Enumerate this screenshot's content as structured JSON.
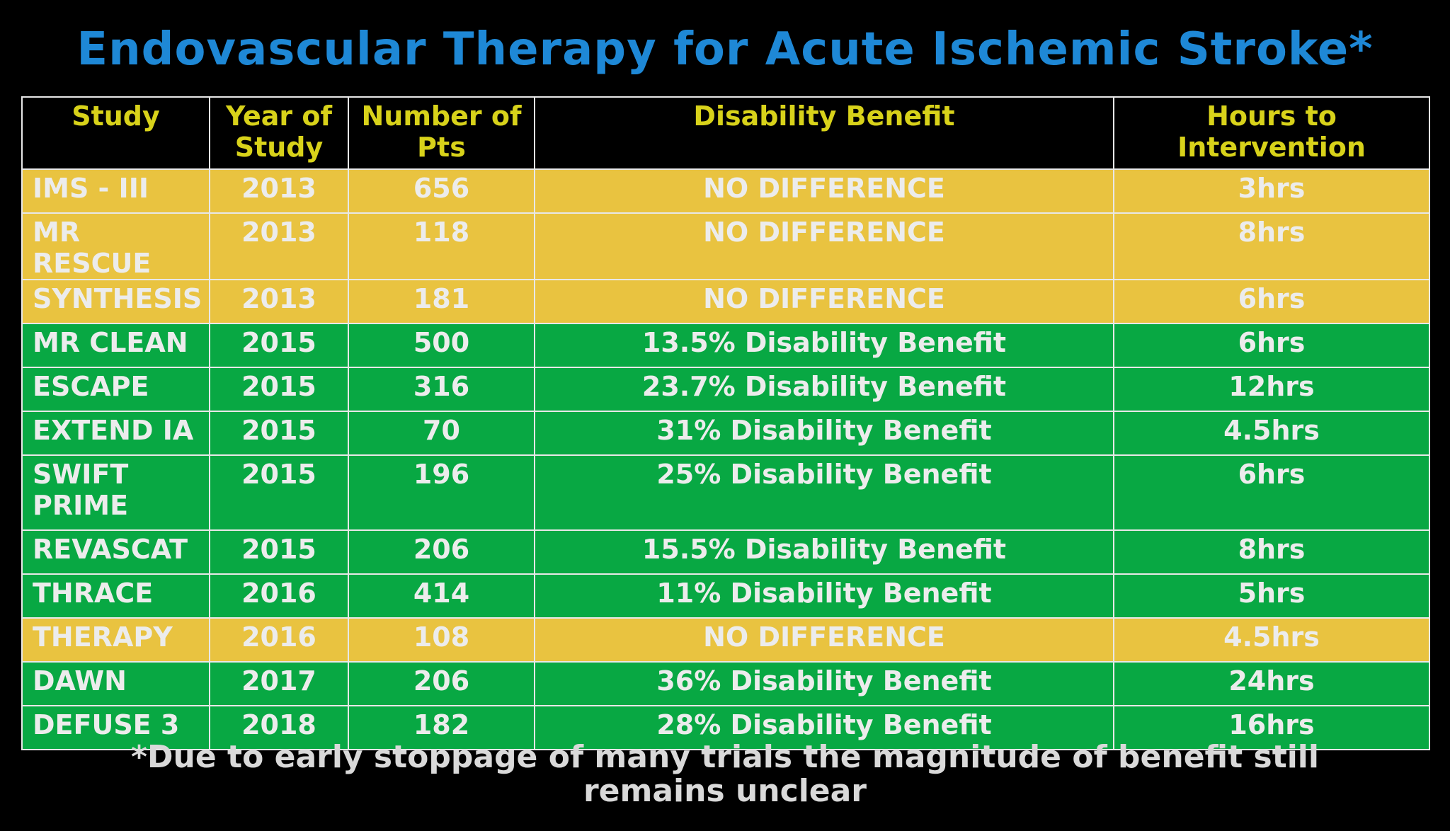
{
  "title": "Endovascular Therapy for Acute Ischemic Stroke*",
  "colors": {
    "background": "#000000",
    "title": "#1e88d6",
    "header_text": "#d8d21a",
    "no_difference_row": "#e9c340",
    "benefit_row": "#08a843",
    "cell_text": "#ececec"
  },
  "table": {
    "headers": {
      "study": "Study",
      "year": "Year of Study",
      "pts": "Number of Pts",
      "disability": "Disability Benefit",
      "hours": "Hours to Intervention"
    },
    "rows": [
      {
        "study": "IMS - III",
        "year": "2013",
        "pts": "656",
        "disability": "NO DIFFERENCE",
        "hours": "3hrs"
      },
      {
        "study": "MR RESCUE",
        "year": "2013",
        "pts": "118",
        "disability": "NO DIFFERENCE",
        "hours": "8hrs"
      },
      {
        "study": "SYNTHESIS",
        "year": "2013",
        "pts": "181",
        "disability": "NO DIFFERENCE",
        "hours": "6hrs"
      },
      {
        "study": "MR CLEAN",
        "year": "2015",
        "pts": "500",
        "disability": "13.5% Disability Benefit",
        "hours": "6hrs"
      },
      {
        "study": "ESCAPE",
        "year": "2015",
        "pts": "316",
        "disability": "23.7% Disability Benefit",
        "hours": "12hrs"
      },
      {
        "study": "EXTEND IA",
        "year": "2015",
        "pts": "70",
        "disability": "31% Disability Benefit",
        "hours": "4.5hrs"
      },
      {
        "study": "SWIFT PRIME",
        "year": "2015",
        "pts": "196",
        "disability": "25% Disability Benefit",
        "hours": "6hrs"
      },
      {
        "study": "REVASCAT",
        "year": "2015",
        "pts": "206",
        "disability": "15.5% Disability Benefit",
        "hours": "8hrs"
      },
      {
        "study": "THRACE",
        "year": "2016",
        "pts": "414",
        "disability": "11% Disability Benefit",
        "hours": "5hrs"
      },
      {
        "study": "THERAPY",
        "year": "2016",
        "pts": "108",
        "disability": "NO DIFFERENCE",
        "hours": "4.5hrs"
      },
      {
        "study": "DAWN",
        "year": "2017",
        "pts": "206",
        "disability": "36% Disability Benefit",
        "hours": "24hrs"
      },
      {
        "study": "DEFUSE 3",
        "year": "2018",
        "pts": "182",
        "disability": "28% Disability Benefit",
        "hours": "16hrs"
      }
    ]
  },
  "footnote": "*Due to early stoppage of many trials the magnitude of benefit still remains unclear"
}
